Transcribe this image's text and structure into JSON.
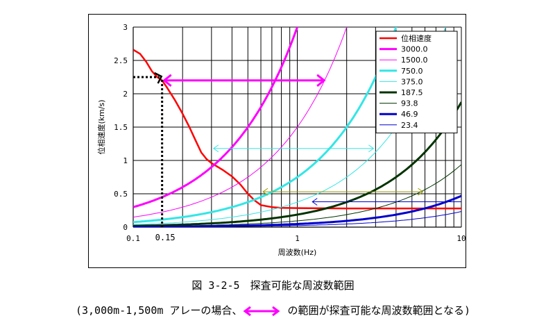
{
  "chart_data": {
    "type": "line",
    "xscale": "log",
    "xlim": [
      0.1,
      10
    ],
    "ylim": [
      0,
      3
    ],
    "xlabel": "周波数(Hz)",
    "ylabel": "位相速度(km/s)",
    "grid": true,
    "legend_position": "top-right",
    "x_ticks": [
      "0.1",
      "1",
      "10"
    ],
    "y_ticks": [
      "0",
      "0.5",
      "1",
      "1.5",
      "2",
      "2.5",
      "3"
    ],
    "series": [
      {
        "name": "位相速度",
        "color": "#ff0000",
        "width": 2.5,
        "kind": "dispersion",
        "points": [
          [
            0.1,
            2.66
          ],
          [
            0.11,
            2.6
          ],
          [
            0.12,
            2.48
          ],
          [
            0.13,
            2.34
          ],
          [
            0.14,
            2.25
          ],
          [
            0.15,
            2.2
          ],
          [
            0.16,
            2.1
          ],
          [
            0.18,
            1.9
          ],
          [
            0.2,
            1.7
          ],
          [
            0.22,
            1.5
          ],
          [
            0.24,
            1.3
          ],
          [
            0.26,
            1.12
          ],
          [
            0.28,
            1.02
          ],
          [
            0.3,
            0.96
          ],
          [
            0.35,
            0.86
          ],
          [
            0.4,
            0.76
          ],
          [
            0.45,
            0.64
          ],
          [
            0.5,
            0.5
          ],
          [
            0.55,
            0.4
          ],
          [
            0.6,
            0.33
          ],
          [
            0.7,
            0.3
          ],
          [
            0.8,
            0.29
          ],
          [
            1.0,
            0.285
          ],
          [
            2.0,
            0.28
          ],
          [
            5.0,
            0.28
          ],
          [
            10.0,
            0.28
          ]
        ]
      },
      {
        "name": "3000.0",
        "wavelength": 3000.0,
        "color": "#ff00ff",
        "width": 3
      },
      {
        "name": "1500.0",
        "wavelength": 1500.0,
        "color": "#ff00ff",
        "width": 1
      },
      {
        "name": "750.0",
        "wavelength": 750.0,
        "color": "#33e6e6",
        "width": 3
      },
      {
        "name": "375.0",
        "wavelength": 375.0,
        "color": "#33e6e6",
        "width": 1
      },
      {
        "name": "187.5",
        "wavelength": 187.5,
        "color": "#003300",
        "width": 3
      },
      {
        "name": "93.8",
        "wavelength": 93.8,
        "color": "#003300",
        "width": 1
      },
      {
        "name": "46.9",
        "wavelength": 46.9,
        "color": "#0000cc",
        "width": 3
      },
      {
        "name": "23.4",
        "wavelength": 23.4,
        "color": "#0000cc",
        "width": 1
      }
    ],
    "annotations": {
      "marker_label_x": "0.15",
      "marker_label_y": "2.25",
      "marker_x": 0.15,
      "marker_y": 2.25,
      "ranges": [
        {
          "from": 0.15,
          "to": 1.5,
          "y": 2.2,
          "color": "#ff00ff",
          "width": 3
        },
        {
          "from": 0.3,
          "to": 3.0,
          "y": 1.18,
          "color": "#33e6e6",
          "width": 1
        },
        {
          "from": 0.6,
          "to": 6.0,
          "y": 0.53,
          "color": "#999900",
          "width": 1
        },
        {
          "from": 1.2,
          "to": 12.0,
          "y": 0.38,
          "color": "#0000cc",
          "width": 1
        }
      ]
    }
  },
  "caption": {
    "line1": "図 3-2-5　探査可能な周波数範囲",
    "line2_before": "(3,000m-1,500m アレーの場合、",
    "line2_after": " の範囲が探査可能な周波数範囲となる)"
  }
}
